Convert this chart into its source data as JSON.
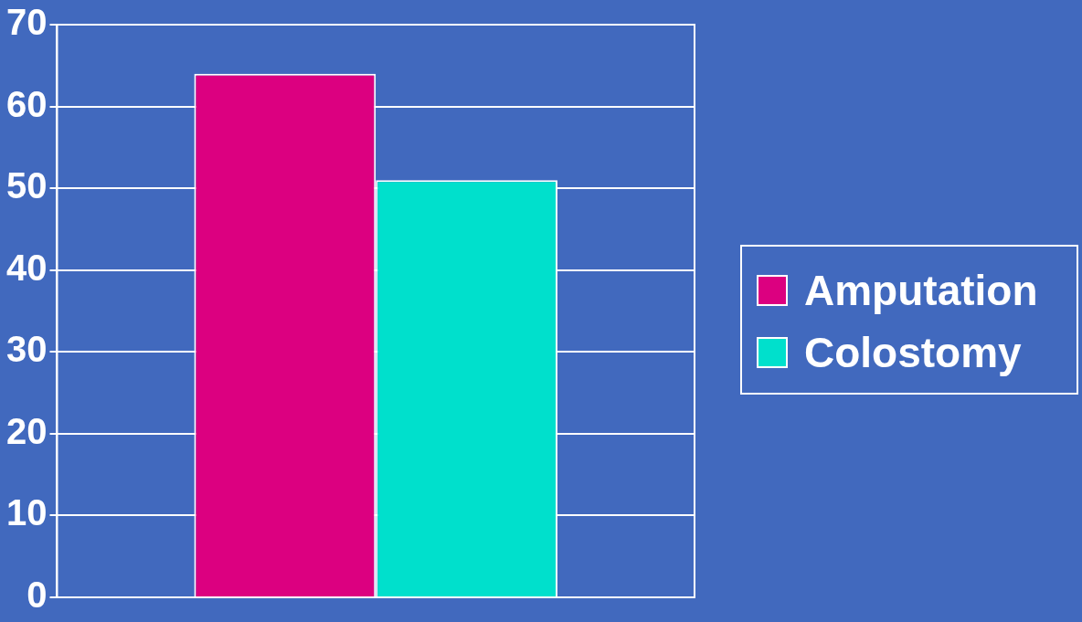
{
  "chart_data": {
    "type": "bar",
    "categories": [
      null
    ],
    "series": [
      {
        "name": "Amputation",
        "color": "#dc0080",
        "values": [
          64
        ]
      },
      {
        "name": "Colostomy",
        "color": "#00e0cc",
        "values": [
          51
        ]
      }
    ],
    "ylim": [
      0,
      70
    ],
    "yticks": [
      0,
      10,
      20,
      30,
      40,
      50,
      60,
      70
    ],
    "grid": "y",
    "legend": "right"
  }
}
